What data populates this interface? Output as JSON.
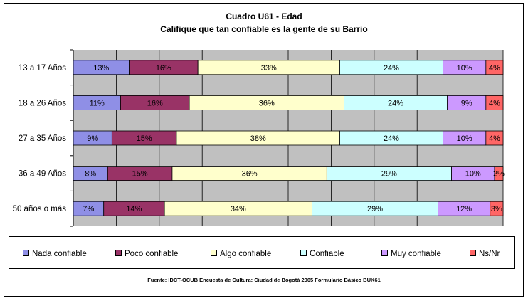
{
  "title": "Cuadro U61 - Edad",
  "subtitle": "Califique que tan confiable es la gente de su Barrio",
  "source": "Fuente: IDCT-OCUB Encuesta de Cultura: Ciudad de Bogotá 2005 Formulario Básico BUK61",
  "chart_data": {
    "type": "bar",
    "orientation": "horizontal",
    "stacked": "percent",
    "categories": [
      "13 a 17 Años",
      "18 a 26 Años",
      "27 a 35 Años",
      "36 a 49 Años",
      "50 años o más"
    ],
    "series": [
      {
        "name": "Nada confiable",
        "color": "#8f8fe6",
        "values": [
          13,
          11,
          9,
          8,
          7
        ],
        "labels": [
          "13%",
          "11%",
          "9%",
          "8%",
          "7%"
        ]
      },
      {
        "name": "Poco confiable",
        "color": "#993366",
        "values": [
          16,
          16,
          15,
          15,
          14
        ],
        "labels": [
          "16%",
          "16%",
          "15%",
          "15%",
          "14%"
        ]
      },
      {
        "name": "Algo confiable",
        "color": "#ffffcc",
        "values": [
          33,
          36,
          38,
          36,
          34
        ],
        "labels": [
          "33%",
          "36%",
          "38%",
          "36%",
          "34%"
        ]
      },
      {
        "name": "Confiable",
        "color": "#ccffff",
        "values": [
          24,
          24,
          24,
          29,
          29
        ],
        "labels": [
          "24%",
          "24%",
          "24%",
          "29%",
          "29%"
        ]
      },
      {
        "name": "Muy confiable",
        "color": "#cc99ff",
        "values": [
          10,
          9,
          10,
          10,
          12
        ],
        "labels": [
          "10%",
          "9%",
          "10%",
          "10%",
          "12%"
        ]
      },
      {
        "name": "Ns/Nr",
        "color": "#ff6666",
        "values": [
          4,
          4,
          4,
          2,
          3
        ],
        "labels": [
          "4%",
          "4%",
          "4%",
          "2%",
          "3%"
        ]
      }
    ],
    "xlim": [
      0,
      100
    ],
    "plot_background": "#c0c0c0",
    "grid": true,
    "legend_position": "bottom"
  }
}
